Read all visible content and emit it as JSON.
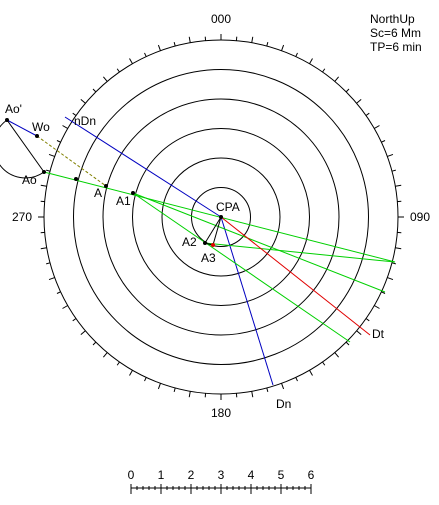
{
  "bearings": {
    "north": "000",
    "east": "090",
    "south": "180",
    "west": "270"
  },
  "info": {
    "mode": "NorthUp",
    "scale": "Sc=6 Mm",
    "period": "TP=6 min"
  },
  "points": {
    "ao_prime": "Ao'",
    "wo": "Wo",
    "ndn": "nDn",
    "ao": "Ao",
    "a": "A",
    "a1": "A1",
    "cpa": "CPA",
    "a2": "A2",
    "a3": "A3",
    "dt": "Dt",
    "dn": "Dn"
  },
  "scale_bar": [
    "0",
    "1",
    "2",
    "3",
    "4",
    "5",
    "6"
  ]
}
